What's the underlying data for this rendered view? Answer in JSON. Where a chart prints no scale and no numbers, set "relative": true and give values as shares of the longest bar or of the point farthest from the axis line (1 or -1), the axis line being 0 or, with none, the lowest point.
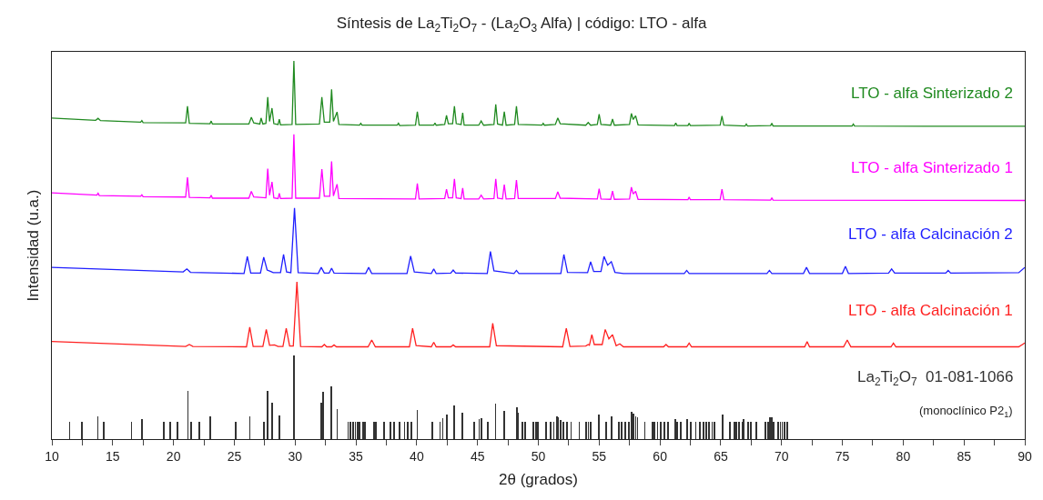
{
  "chart_data": {
    "type": "line",
    "title": "Síntesis de La$_{2}$Ti$_{2}$O$_{7}$ - (La$_{2}$O$_{3}$ Alfa) | código: LTO - alfa",
    "xlabel": "2θ (grados)",
    "ylabel": "Intensidad (u.a.)",
    "relative": true,
    "legend": false,
    "marker": "none",
    "line_style": "solid",
    "xlim": [
      10,
      90
    ],
    "xticks": [
      10,
      {
        "value": 12.5,
        "label": null
      },
      15,
      {
        "value": 17.5,
        "label": null
      },
      20,
      {
        "value": 22.5,
        "label": null
      },
      25,
      {
        "value": 27.5,
        "label": null
      },
      30,
      {
        "value": 32.5,
        "label": null
      },
      35,
      {
        "value": 37.5,
        "label": null
      },
      40,
      {
        "value": 42.5,
        "label": null
      },
      45,
      {
        "value": 47.5,
        "label": null
      },
      50,
      {
        "value": 52.5,
        "label": null
      },
      55,
      {
        "value": 57.5,
        "label": null
      },
      60,
      {
        "value": 62.5,
        "label": null
      },
      65,
      {
        "value": 67.5,
        "label": null
      },
      70,
      {
        "value": 72.5,
        "label": null
      },
      75,
      {
        "value": 77.5,
        "label": null
      },
      80,
      {
        "value": 82.5,
        "label": null
      },
      85,
      {
        "value": 87.5,
        "label": null
      },
      90
    ],
    "annotations": [
      "(monoclínico P2$_{1}$)"
    ],
    "series": [
      {
        "name": "LTO - alfa Sinterizado 2",
        "color": "#208a20",
        "x": [
          10,
          13.6,
          13.8,
          14.0,
          17.3,
          17.4,
          17.5,
          21.0,
          21.15,
          21.3,
          23.0,
          23.1,
          23.2,
          26.2,
          26.4,
          26.6,
          27.1,
          27.2,
          27.35,
          27.6,
          27.75,
          27.9,
          28.1,
          28.25,
          28.6,
          28.7,
          28.8,
          29.75,
          29.9,
          30.05,
          32.0,
          32.2,
          32.4,
          32.85,
          33.0,
          33.15,
          33.45,
          33.6,
          35.3,
          35.4,
          35.5,
          38.4,
          38.5,
          38.6,
          39.9,
          40.05,
          40.2,
          41.4,
          41.5,
          41.6,
          42.3,
          42.45,
          42.6,
          42.95,
          43.1,
          43.25,
          43.65,
          43.78,
          43.9,
          45.1,
          45.3,
          45.5,
          46.35,
          46.5,
          46.65,
          47.05,
          47.2,
          47.35,
          48.05,
          48.2,
          48.35,
          50.3,
          50.4,
          50.5,
          51.4,
          51.6,
          51.8,
          53.9,
          54.1,
          54.3,
          54.85,
          55.0,
          55.15,
          55.95,
          56.1,
          56.25,
          57.5,
          57.65,
          57.8,
          58.0,
          58.2,
          61.2,
          61.3,
          61.4,
          62.3,
          62.4,
          62.5,
          64.95,
          65.1,
          65.25,
          67.0,
          67.1,
          67.2,
          69.1,
          69.2,
          69.3,
          75.8,
          75.9,
          76.0,
          85.0,
          90
        ],
        "values": [
          0.849,
          0.843,
          0.848,
          0.842,
          0.838,
          0.842,
          0.837,
          0.836,
          0.88,
          0.835,
          0.834,
          0.841,
          0.833,
          0.833,
          0.851,
          0.836,
          0.833,
          0.849,
          0.833,
          0.835,
          0.904,
          0.84,
          0.875,
          0.834,
          0.832,
          0.846,
          0.831,
          0.832,
          1.0,
          0.832,
          0.833,
          0.904,
          0.838,
          0.838,
          0.925,
          0.84,
          0.865,
          0.832,
          0.83,
          0.835,
          0.83,
          0.83,
          0.835,
          0.829,
          0.83,
          0.866,
          0.83,
          0.83,
          0.836,
          0.83,
          0.832,
          0.856,
          0.834,
          0.834,
          0.88,
          0.834,
          0.832,
          0.863,
          0.83,
          0.83,
          0.841,
          0.83,
          0.832,
          0.885,
          0.833,
          0.83,
          0.866,
          0.83,
          0.832,
          0.88,
          0.832,
          0.83,
          0.835,
          0.83,
          0.832,
          0.849,
          0.834,
          0.83,
          0.837,
          0.83,
          0.832,
          0.859,
          0.832,
          0.83,
          0.846,
          0.83,
          0.832,
          0.861,
          0.845,
          0.855,
          0.831,
          0.829,
          0.836,
          0.829,
          0.829,
          0.835,
          0.829,
          0.83,
          0.854,
          0.83,
          0.828,
          0.833,
          0.828,
          0.829,
          0.835,
          0.828,
          0.828,
          0.833,
          0.828,
          0.827,
          0.827
        ]
      },
      {
        "name": "LTO - alfa Sinterizado 1",
        "color": "#ff00ff",
        "x": [
          10,
          13.7,
          13.8,
          13.9,
          17.3,
          17.4,
          17.5,
          21.0,
          21.15,
          21.3,
          23.0,
          23.1,
          23.2,
          26.2,
          26.4,
          26.6,
          27.6,
          27.75,
          27.9,
          28.1,
          28.25,
          28.6,
          28.7,
          28.8,
          29.75,
          29.9,
          30.05,
          32.0,
          32.2,
          32.4,
          32.85,
          33.0,
          33.15,
          33.45,
          33.6,
          39.9,
          40.05,
          40.2,
          42.3,
          42.45,
          42.6,
          42.95,
          43.1,
          43.25,
          43.65,
          43.78,
          43.9,
          45.1,
          45.3,
          45.5,
          46.35,
          46.5,
          46.65,
          47.05,
          47.2,
          47.35,
          48.05,
          48.2,
          48.35,
          51.4,
          51.6,
          51.8,
          54.85,
          55.0,
          55.15,
          55.95,
          56.1,
          56.25,
          57.5,
          57.65,
          57.8,
          58.0,
          58.2,
          62.3,
          62.4,
          62.5,
          64.95,
          65.1,
          65.25,
          69.1,
          69.2,
          69.3,
          90
        ],
        "values": [
          0.651,
          0.645,
          0.65,
          0.644,
          0.642,
          0.646,
          0.641,
          0.64,
          0.692,
          0.639,
          0.638,
          0.645,
          0.637,
          0.637,
          0.655,
          0.64,
          0.638,
          0.715,
          0.645,
          0.68,
          0.638,
          0.636,
          0.65,
          0.636,
          0.637,
          0.806,
          0.637,
          0.637,
          0.714,
          0.642,
          0.642,
          0.734,
          0.643,
          0.674,
          0.636,
          0.635,
          0.676,
          0.635,
          0.636,
          0.661,
          0.638,
          0.638,
          0.688,
          0.638,
          0.636,
          0.664,
          0.635,
          0.635,
          0.645,
          0.635,
          0.636,
          0.688,
          0.637,
          0.635,
          0.673,
          0.635,
          0.636,
          0.685,
          0.636,
          0.636,
          0.654,
          0.637,
          0.635,
          0.662,
          0.635,
          0.634,
          0.656,
          0.634,
          0.635,
          0.666,
          0.648,
          0.655,
          0.634,
          0.633,
          0.64,
          0.633,
          0.633,
          0.661,
          0.633,
          0.632,
          0.638,
          0.632,
          0.631
        ]
      },
      {
        "name": "LTO - alfa Calcinación 2",
        "color": "#1f1fff",
        "x": [
          10,
          20.8,
          21.1,
          21.4,
          25.8,
          26.07,
          26.35,
          27.15,
          27.42,
          27.7,
          28.0,
          28.2,
          28.8,
          29.05,
          29.3,
          29.65,
          29.95,
          30.25,
          31.9,
          32.15,
          32.4,
          32.8,
          33.0,
          33.2,
          35.8,
          36.05,
          36.3,
          39.2,
          39.5,
          39.8,
          41.2,
          41.4,
          41.6,
          42.8,
          43.0,
          43.2,
          45.8,
          46.06,
          46.35,
          48.0,
          48.2,
          48.4,
          51.85,
          52.1,
          52.4,
          54.05,
          54.3,
          54.55,
          55.15,
          55.4,
          55.7,
          56.0,
          56.3,
          57.0,
          62.0,
          62.2,
          62.4,
          68.8,
          69.0,
          69.2,
          71.8,
          72.05,
          72.3,
          75.0,
          75.25,
          75.5,
          78.8,
          79.05,
          79.3,
          83.5,
          83.7,
          83.9,
          89.5,
          90
        ],
        "values": [
          0.454,
          0.442,
          0.45,
          0.441,
          0.438,
          0.483,
          0.439,
          0.439,
          0.481,
          0.447,
          0.443,
          0.44,
          0.44,
          0.488,
          0.442,
          0.44,
          0.611,
          0.44,
          0.438,
          0.454,
          0.439,
          0.439,
          0.452,
          0.439,
          0.438,
          0.454,
          0.438,
          0.438,
          0.484,
          0.442,
          0.438,
          0.45,
          0.438,
          0.439,
          0.447,
          0.439,
          0.438,
          0.496,
          0.445,
          0.438,
          0.446,
          0.438,
          0.438,
          0.488,
          0.441,
          0.44,
          0.469,
          0.443,
          0.443,
          0.483,
          0.46,
          0.469,
          0.441,
          0.438,
          0.438,
          0.446,
          0.438,
          0.438,
          0.446,
          0.438,
          0.438,
          0.454,
          0.438,
          0.438,
          0.457,
          0.438,
          0.439,
          0.45,
          0.439,
          0.439,
          0.446,
          0.439,
          0.44,
          0.454
        ]
      },
      {
        "name": "LTO - alfa Calcinación 1",
        "color": "#ff2020",
        "x": [
          10,
          21.0,
          21.3,
          21.6,
          26.0,
          26.27,
          26.55,
          27.35,
          27.63,
          27.9,
          28.3,
          28.6,
          29.0,
          29.27,
          29.55,
          29.85,
          30.15,
          30.45,
          32.2,
          32.4,
          32.6,
          33.0,
          33.2,
          33.4,
          36.0,
          36.3,
          36.6,
          39.4,
          39.66,
          39.95,
          41.2,
          41.4,
          41.6,
          42.8,
          43.0,
          43.2,
          46.0,
          46.25,
          46.55,
          52.0,
          52.3,
          52.6,
          53.9,
          54.1,
          54.2,
          54.4,
          54.6,
          55.25,
          55.5,
          55.8,
          56.1,
          56.4,
          56.7,
          57.0,
          60.3,
          60.5,
          60.7,
          62.2,
          62.4,
          62.6,
          71.9,
          72.1,
          72.3,
          75.1,
          75.4,
          75.7,
          79.0,
          79.2,
          79.4,
          89.5,
          90
        ],
        "values": [
          0.258,
          0.245,
          0.25,
          0.245,
          0.244,
          0.296,
          0.245,
          0.245,
          0.29,
          0.248,
          0.249,
          0.245,
          0.245,
          0.293,
          0.246,
          0.246,
          0.416,
          0.245,
          0.244,
          0.25,
          0.244,
          0.244,
          0.249,
          0.244,
          0.244,
          0.262,
          0.244,
          0.244,
          0.293,
          0.247,
          0.244,
          0.256,
          0.244,
          0.244,
          0.249,
          0.244,
          0.244,
          0.306,
          0.247,
          0.244,
          0.293,
          0.245,
          0.246,
          0.25,
          0.248,
          0.276,
          0.25,
          0.25,
          0.29,
          0.265,
          0.276,
          0.247,
          0.252,
          0.244,
          0.244,
          0.25,
          0.244,
          0.244,
          0.254,
          0.244,
          0.244,
          0.258,
          0.244,
          0.244,
          0.262,
          0.244,
          0.244,
          0.254,
          0.244,
          0.244,
          0.254
        ]
      },
      {
        "name": "La$_{2}$Ti$_{2}$O$_{7}$  01-081-1066",
        "color": "#333333",
        "type": "bar",
        "x": [
          11.46,
          12.46,
          13.77,
          14.27,
          16.55,
          17.42,
          19.23,
          19.72,
          20.32,
          21.18,
          21.46,
          22.13,
          23.0,
          25.1,
          26.27,
          27.41,
          27.71,
          28.13,
          28.7,
          29.89,
          32.17,
          32.3,
          32.99,
          33.46,
          34.36,
          34.53,
          34.78,
          34.95,
          35.15,
          35.32,
          35.57,
          35.77,
          36.51,
          36.63,
          37.33,
          37.83,
          38.13,
          38.57,
          39.0,
          39.24,
          39.56,
          40.04,
          41.27,
          41.92,
          42.14,
          42.46,
          43.09,
          43.76,
          44.7,
          45.14,
          45.32,
          45.86,
          46.48,
          47.18,
          48.22,
          48.35,
          48.7,
          48.94,
          49.58,
          49.8,
          49.97,
          50.65,
          51.02,
          51.27,
          51.52,
          51.64,
          51.81,
          52.06,
          52.38,
          52.7,
          53.37,
          53.94,
          54.12,
          54.29,
          54.99,
          55.6,
          56.03,
          56.6,
          56.85,
          57.17,
          57.46,
          57.66,
          57.83,
          58.0,
          58.15,
          58.75,
          59.39,
          59.56,
          59.81,
          60.06,
          60.38,
          60.68,
          61.25,
          61.42,
          61.72,
          62.24,
          62.53,
          62.95,
          63.27,
          63.6,
          63.8,
          64.05,
          64.3,
          64.47,
          65.16,
          65.78,
          66.1,
          66.27,
          66.52,
          66.77,
          66.89,
          67.26,
          67.5,
          67.95,
          68.67,
          68.87,
          69.07,
          69.2,
          69.32,
          69.74,
          69.91,
          70.06,
          70.24,
          70.49
        ],
        "values": [
          0.045,
          0.045,
          0.061,
          0.045,
          0.045,
          0.054,
          0.045,
          0.045,
          0.045,
          0.127,
          0.045,
          0.045,
          0.061,
          0.045,
          0.06,
          0.045,
          0.127,
          0.096,
          0.063,
          0.221,
          0.097,
          0.125,
          0.139,
          0.079,
          0.045,
          0.045,
          0.045,
          0.045,
          0.045,
          0.045,
          0.045,
          0.045,
          0.045,
          0.045,
          0.045,
          0.045,
          0.045,
          0.045,
          0.045,
          0.045,
          0.045,
          0.076,
          0.045,
          0.045,
          0.056,
          0.064,
          0.09,
          0.07,
          0.045,
          0.052,
          0.056,
          0.045,
          0.094,
          0.075,
          0.083,
          0.07,
          0.045,
          0.045,
          0.045,
          0.045,
          0.045,
          0.045,
          0.045,
          0.045,
          0.061,
          0.058,
          0.05,
          0.045,
          0.045,
          0.045,
          0.045,
          0.045,
          0.045,
          0.045,
          0.064,
          0.045,
          0.06,
          0.045,
          0.045,
          0.045,
          0.045,
          0.072,
          0.068,
          0.06,
          0.058,
          0.045,
          0.045,
          0.045,
          0.045,
          0.045,
          0.045,
          0.045,
          0.054,
          0.045,
          0.045,
          0.052,
          0.045,
          0.045,
          0.045,
          0.045,
          0.045,
          0.045,
          0.045,
          0.045,
          0.064,
          0.045,
          0.045,
          0.045,
          0.045,
          0.045,
          0.052,
          0.045,
          0.045,
          0.045,
          0.045,
          0.045,
          0.058,
          0.058,
          0.045,
          0.045,
          0.045,
          0.045,
          0.045,
          0.045
        ]
      }
    ]
  }
}
